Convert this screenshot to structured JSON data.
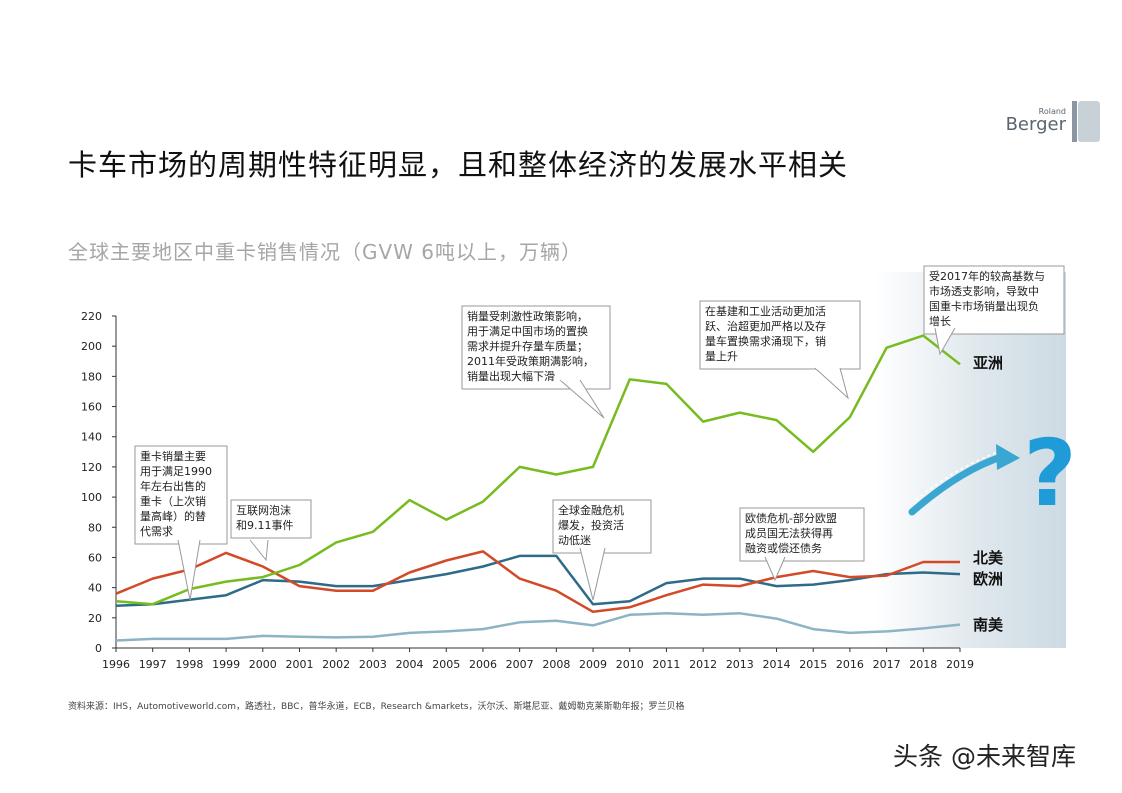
{
  "page": {
    "title": "卡车市场的周期性特征明显，且和整体经济的发展水平相关",
    "source": "资料来源：IHS，Automotiveworld.com，路透社，BBC，普华永道，ECB，Research &markets，沃尔沃、斯堪尼亚、戴姆勒克莱斯勒年报；罗兰贝格",
    "watermark": "头条 @未来智库"
  },
  "logo": {
    "small": "Roland",
    "big": "Berger",
    "letter": "B"
  },
  "colors": {
    "asia": "#77bc1f",
    "north_america": "#d24a27",
    "europe": "#2d6b88",
    "south_america": "#8cb4c4",
    "forecast_shade": "#c4d4de",
    "arrow": "#3ba6d2",
    "question": "#1f9cd8"
  },
  "chart_data": {
    "type": "line",
    "title": "全球主要地区中重卡销售情况（GVW 6吨以上，万辆）",
    "x": [
      "1996",
      "1997",
      "1998",
      "1999",
      "2000",
      "2001",
      "2002",
      "2003",
      "2004",
      "2005",
      "2006",
      "2007",
      "2008",
      "2009",
      "2010",
      "2011",
      "2012",
      "2013",
      "2014",
      "2015",
      "2016",
      "2017",
      "2018",
      "2019"
    ],
    "ylim": [
      0,
      220
    ],
    "yticks": [
      0,
      20,
      40,
      60,
      80,
      100,
      120,
      140,
      160,
      180,
      200,
      220
    ],
    "forecast_from": "2017",
    "series": [
      {
        "key": "asia",
        "name": "亚洲",
        "color": "#77bc1f",
        "values": [
          31,
          29,
          39,
          44,
          47,
          55,
          70,
          77,
          98,
          85,
          97,
          120,
          115,
          120,
          178,
          175,
          150,
          156,
          151,
          130,
          153,
          199,
          207,
          188
        ]
      },
      {
        "key": "north_america",
        "name": "北美",
        "color": "#d24a27",
        "values": [
          36,
          46,
          52,
          63,
          54,
          41,
          38,
          38,
          50,
          58,
          64,
          46,
          38,
          24,
          27,
          35,
          42,
          41,
          47,
          51,
          47,
          48,
          57,
          57
        ]
      },
      {
        "key": "europe",
        "name": "欧洲",
        "color": "#2d6b88",
        "values": [
          28,
          29,
          32,
          35,
          45,
          44,
          41,
          41,
          45,
          49,
          54,
          61,
          61,
          29,
          31,
          43,
          46,
          46,
          41,
          42,
          45,
          49,
          50,
          49
        ]
      },
      {
        "key": "south_america",
        "name": "南美",
        "color": "#8cb4c4",
        "values": [
          5,
          6,
          6,
          6,
          8,
          7.5,
          7,
          7.5,
          10,
          11,
          12.5,
          17,
          18,
          15,
          22,
          23,
          22,
          23,
          19.5,
          12.5,
          10,
          11,
          13,
          15.5
        ]
      }
    ],
    "annotations": [
      {
        "text": "重卡销量主要用于满足1990年左右出售的重卡（上次销量高峰）的替代需求",
        "x": "1998"
      },
      {
        "text": "互联网泡沫和9.11事件",
        "x": "2000"
      },
      {
        "text": "销量受刺激性政策影响，用于满足中国市场的置换需求并提升存量车质量；2011年受政策期满影响，销量出现大幅下滑",
        "x": "2009"
      },
      {
        "text": "全球金融危机爆发，投资活动低迷",
        "x": "2009"
      },
      {
        "text": "在基建和工业活动更加活跃、治超更加严格以及存量车置换需求涌现下，销量上升",
        "x": "2015"
      },
      {
        "text": "欧债危机-部分欧盟成员国无法获得再融资或偿还债务",
        "x": "2014"
      },
      {
        "text": "受2017年的较高基数与市场透支影响，导致中国重卡市场销量出现负增长",
        "x": "2018"
      }
    ],
    "forecast_symbol": "?"
  }
}
